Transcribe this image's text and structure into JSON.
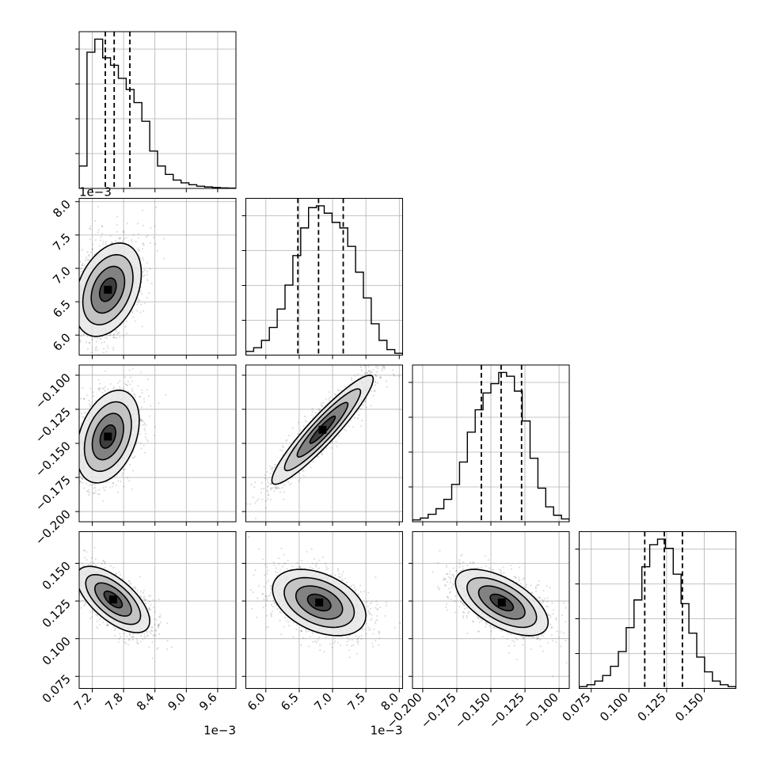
{
  "chart_data": {
    "type": "corner",
    "title": "",
    "params": [
      {
        "ticks": [
          "7.2",
          "7.8",
          "8.4",
          "9.0",
          "9.6"
        ],
        "tick_values": [
          7.2,
          7.8,
          8.4,
          9.0,
          9.6
        ],
        "range": [
          6.95,
          9.95
        ],
        "offset_label": "1e−3",
        "quantiles": [
          7.45,
          7.62,
          7.92
        ],
        "hist": [
          1.2,
          7.3,
          8.0,
          7.0,
          6.6,
          5.9,
          5.3,
          4.6,
          3.6,
          2.0,
          1.2,
          0.75,
          0.45,
          0.3,
          0.2,
          0.12,
          0.08,
          0.05,
          0.03,
          0.02
        ]
      },
      {
        "ticks": [
          "6.0",
          "6.5",
          "7.0",
          "7.5",
          "8.0"
        ],
        "tick_values": [
          6.0,
          6.5,
          7.0,
          7.5,
          8.0
        ],
        "range": [
          5.7,
          8.05
        ],
        "offset_label": "1e−3",
        "quantiles": [
          6.48,
          6.79,
          7.16
        ],
        "hist": [
          0.2,
          0.4,
          0.8,
          1.5,
          2.5,
          3.8,
          5.4,
          6.9,
          8.0,
          8.1,
          7.7,
          7.2,
          6.9,
          5.9,
          4.5,
          3.1,
          1.7,
          0.8,
          0.3,
          0.1
        ]
      },
      {
        "ticks": [
          "−0.200",
          "−0.175",
          "−0.150",
          "−0.125",
          "−0.100"
        ],
        "tick_values": [
          -0.2,
          -0.175,
          -0.15,
          -0.125,
          -0.1
        ],
        "range": [
          -0.2075,
          -0.0925
        ],
        "offset_label": "",
        "quantiles": [
          -0.157,
          -0.1425,
          -0.1275
        ],
        "hist": [
          0.1,
          0.2,
          0.4,
          0.7,
          1.2,
          2.0,
          3.2,
          4.8,
          6.0,
          6.9,
          7.4,
          8.0,
          7.8,
          7.0,
          5.4,
          3.4,
          1.8,
          0.8,
          0.35,
          0.15
        ]
      },
      {
        "ticks": [
          "0.075",
          "0.100",
          "0.125",
          "0.150"
        ],
        "tick_values": [
          0.075,
          0.1,
          0.125,
          0.15
        ],
        "range": [
          0.067,
          0.171
        ],
        "offset_label": "",
        "quantiles": [
          0.1105,
          0.1235,
          0.1355
        ],
        "hist": [
          0.1,
          0.2,
          0.4,
          0.7,
          1.2,
          2.0,
          3.3,
          4.8,
          6.6,
          7.8,
          8.1,
          7.6,
          6.2,
          4.6,
          3.0,
          1.7,
          0.9,
          0.4,
          0.2,
          0.1
        ]
      }
    ],
    "pairs": [
      {
        "row": 1,
        "col": 0,
        "center": [
          7.5,
          6.68
        ],
        "sigma": [
          0.32,
          0.35
        ],
        "corr": 0.35
      },
      {
        "row": 2,
        "col": 0,
        "center": [
          7.5,
          -0.145
        ],
        "sigma": [
          0.3,
          0.017
        ],
        "corr": 0.35
      },
      {
        "row": 2,
        "col": 1,
        "center": [
          6.85,
          -0.14
        ],
        "sigma": [
          0.38,
          0.02
        ],
        "corr": 0.93
      },
      {
        "row": 3,
        "col": 0,
        "center": [
          7.6,
          0.126
        ],
        "sigma": [
          0.35,
          0.011
        ],
        "corr": -0.65
      },
      {
        "row": 3,
        "col": 1,
        "center": [
          6.8,
          0.124
        ],
        "sigma": [
          0.35,
          0.011
        ],
        "corr": -0.4
      },
      {
        "row": 3,
        "col": 2,
        "center": [
          -0.142,
          0.124
        ],
        "sigma": [
          0.017,
          0.011
        ],
        "corr": -0.6
      }
    ],
    "contour_levels_sigma": [
      0.5,
      1.0,
      1.5,
      2.0
    ],
    "grid": true,
    "legend": "none"
  }
}
